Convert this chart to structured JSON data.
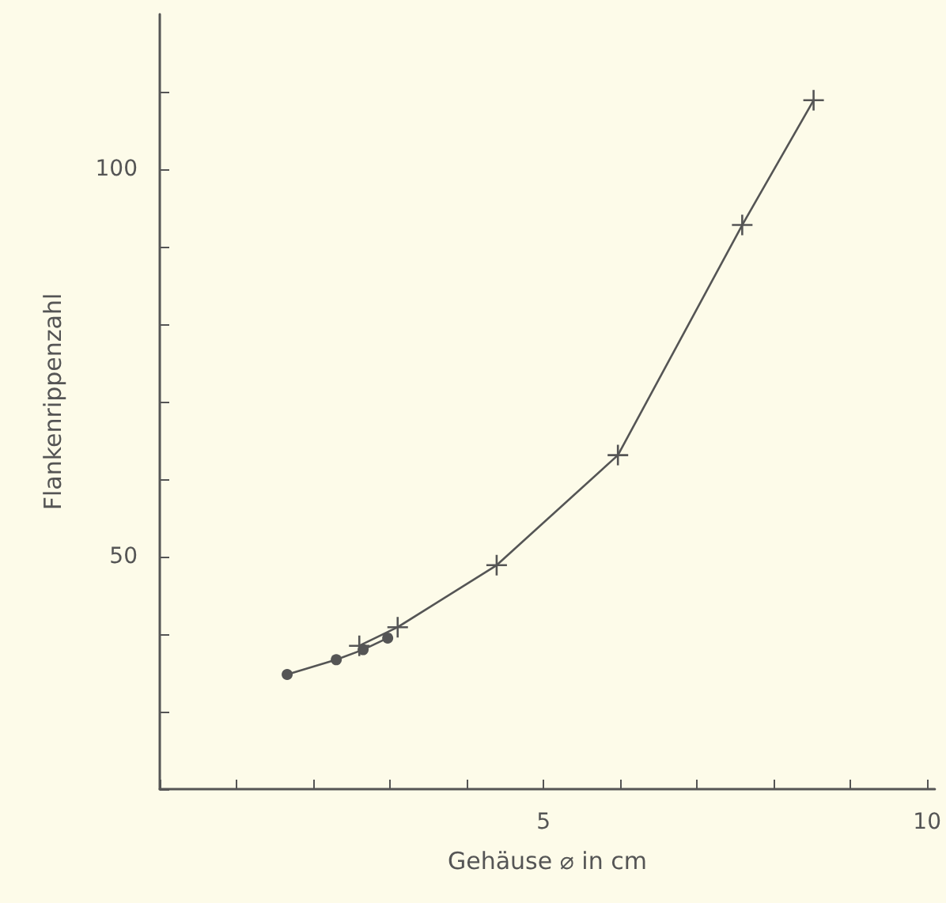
{
  "chart_data": {
    "type": "line",
    "xlabel": "Gehäuse ⌀ in cm",
    "ylabel": "Flankenrippenzahl",
    "xlim": [
      0,
      10.1
    ],
    "xticks": [
      {
        "value": 0,
        "label": null
      },
      {
        "value": 1,
        "label": null
      },
      {
        "value": 2,
        "label": null
      },
      {
        "value": 3,
        "label": null
      },
      {
        "value": 4,
        "label": null
      },
      5,
      {
        "value": 6,
        "label": null
      },
      {
        "value": 7,
        "label": null
      },
      {
        "value": 8,
        "label": null
      },
      {
        "value": 9,
        "label": null
      },
      10
    ],
    "ylim": [
      20,
      120
    ],
    "yticks": [
      {
        "value": 20,
        "label": null
      },
      {
        "value": 30,
        "label": null
      },
      {
        "value": 40,
        "label": null
      },
      50,
      {
        "value": 60,
        "label": null
      },
      {
        "value": 70,
        "label": null
      },
      {
        "value": 80,
        "label": null
      },
      {
        "value": 90,
        "label": null
      },
      100,
      {
        "value": 110,
        "label": null
      }
    ],
    "grid": false,
    "line_style": "solid",
    "series": [
      {
        "color": "#555555",
        "marker": "circle",
        "x": [
          1.66,
          2.3,
          2.65,
          2.97
        ],
        "values": [
          34.8,
          36.7,
          38.0,
          39.5
        ]
      },
      {
        "color": "#555555",
        "marker": "cross",
        "x": [
          2.6,
          3.1,
          4.39,
          5.97,
          7.59,
          8.52
        ],
        "values": [
          38.5,
          40.9,
          48.9,
          63.1,
          92.8,
          108.9
        ]
      }
    ]
  }
}
